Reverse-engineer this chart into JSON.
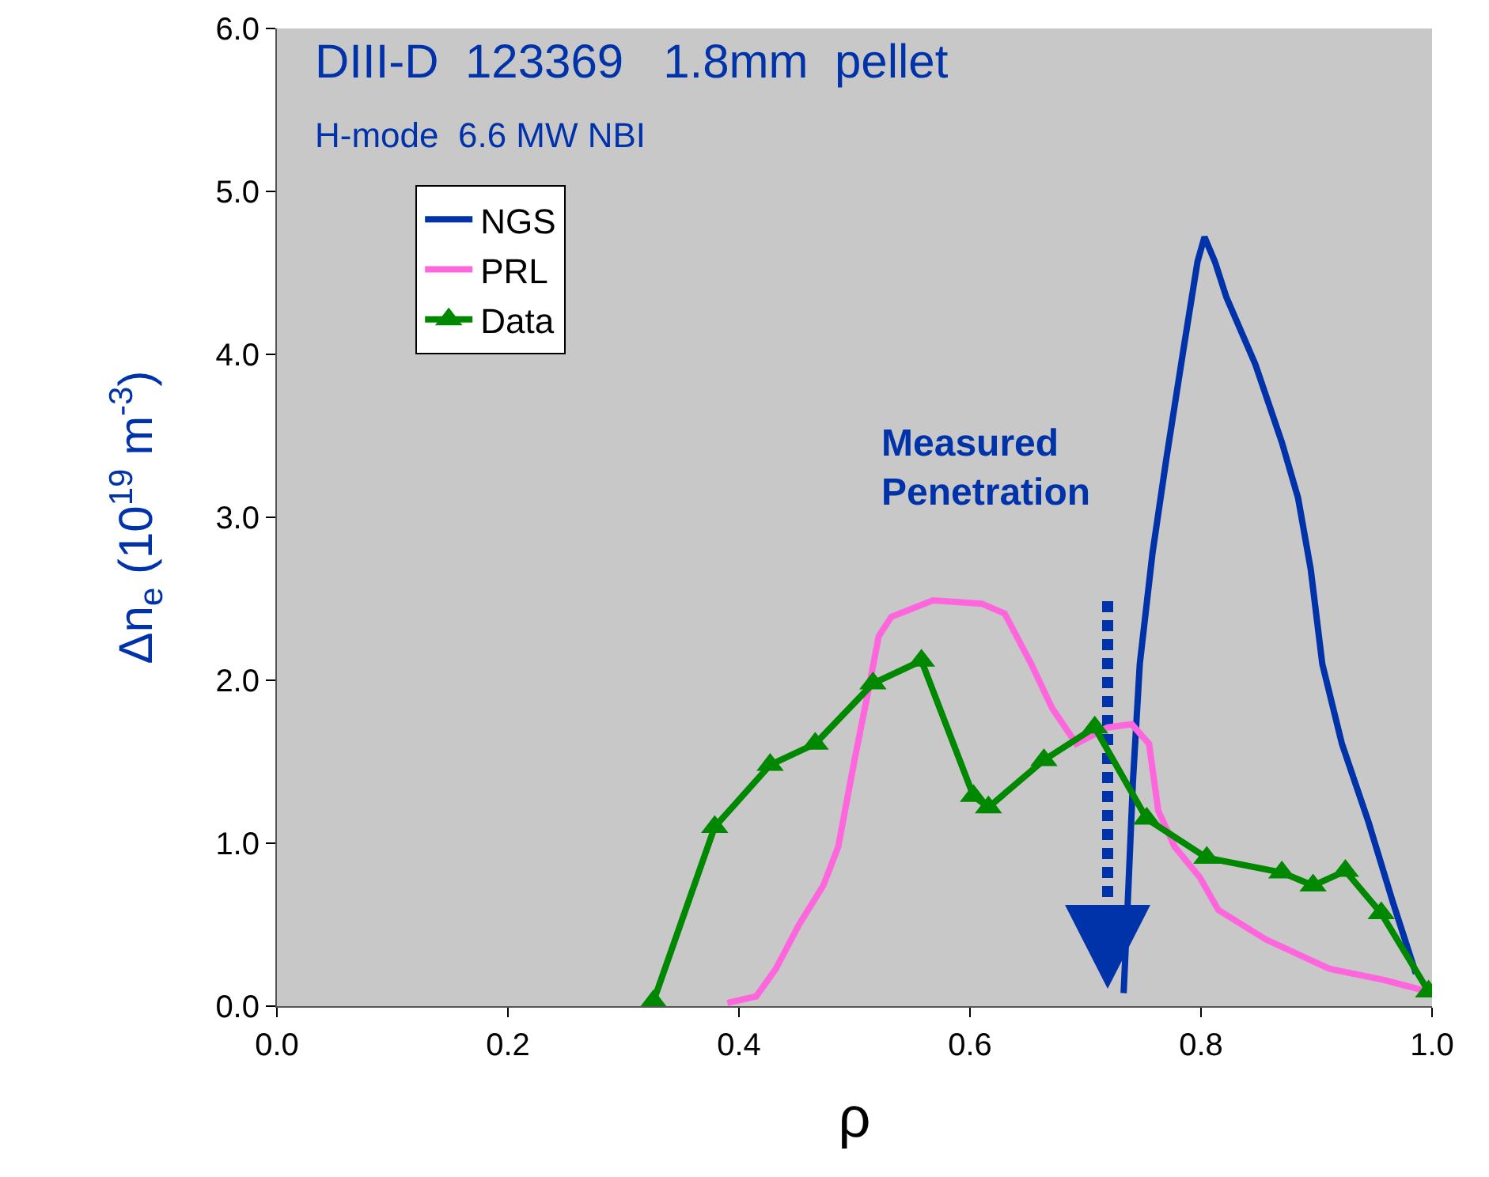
{
  "chart_data": {
    "type": "line",
    "title": "DIII-D  123369   1.8mm  pellet",
    "subtitle": "H-mode  6.6 MW NBI",
    "xlabel": "ρ",
    "ylabel": "Δn$_{e}$ (10$^{19}$ m$^{-3}$)",
    "xlim": [
      0,
      1
    ],
    "ylim": [
      0,
      6
    ],
    "xticks": [
      {
        "value": 0,
        "label": "0.0"
      },
      0.2,
      0.4,
      0.6,
      0.8,
      {
        "value": 1,
        "label": "1.0"
      }
    ],
    "yticks": [
      {
        "value": 0,
        "label": "0.0"
      },
      {
        "value": 1,
        "label": "1.0"
      },
      {
        "value": 2,
        "label": "2.0"
      },
      {
        "value": 3,
        "label": "3.0"
      },
      {
        "value": 4,
        "label": "4.0"
      },
      {
        "value": 5,
        "label": "5.0"
      },
      {
        "value": 6,
        "label": "6.0"
      }
    ],
    "grid": false,
    "legend": "top left",
    "line_style": "solid",
    "series": [
      {
        "name": "NGS",
        "color": "#0033aa",
        "marker": "none",
        "x": [
          0.733,
          0.736,
          0.741,
          0.747,
          0.758,
          0.77,
          0.785,
          0.797,
          0.803,
          0.812,
          0.822,
          0.847,
          0.87,
          0.884,
          0.895,
          0.905,
          0.922,
          0.945,
          0.966,
          0.986
        ],
        "values": [
          0.08,
          0.54,
          1.37,
          2.1,
          2.78,
          3.36,
          4.04,
          4.57,
          4.72,
          4.57,
          4.35,
          3.94,
          3.46,
          3.12,
          2.68,
          2.1,
          1.61,
          1.13,
          0.64,
          0.2
        ]
      },
      {
        "name": "PRL",
        "color": "#ff66dd",
        "marker": "none",
        "x": [
          0.39,
          0.415,
          0.432,
          0.452,
          0.473,
          0.486,
          0.5,
          0.511,
          0.521,
          0.532,
          0.568,
          0.61,
          0.63,
          0.653,
          0.671,
          0.692,
          0.719,
          0.74,
          0.755,
          0.763,
          0.777,
          0.799,
          0.815,
          0.856,
          0.911,
          0.959,
          0.996
        ],
        "values": [
          0.02,
          0.06,
          0.23,
          0.5,
          0.74,
          0.98,
          1.51,
          1.9,
          2.27,
          2.39,
          2.49,
          2.47,
          2.41,
          2.1,
          1.83,
          1.61,
          1.71,
          1.73,
          1.61,
          1.2,
          0.98,
          0.79,
          0.59,
          0.41,
          0.23,
          0.16,
          0.09
        ]
      },
      {
        "name": "Data",
        "color": "#008800",
        "marker": "triangle",
        "x": [
          0.326,
          0.379,
          0.427,
          0.466,
          0.516,
          0.558,
          0.603,
          0.616,
          0.664,
          0.708,
          0.753,
          0.805,
          0.87,
          0.897,
          0.925,
          0.956,
          0.997
        ],
        "values": [
          0.03,
          1.1,
          1.48,
          1.61,
          1.98,
          2.12,
          1.29,
          1.22,
          1.51,
          1.71,
          1.15,
          0.91,
          0.82,
          0.74,
          0.83,
          0.57,
          0.09
        ]
      }
    ],
    "annotations": [
      "Measured Penetration"
    ]
  }
}
